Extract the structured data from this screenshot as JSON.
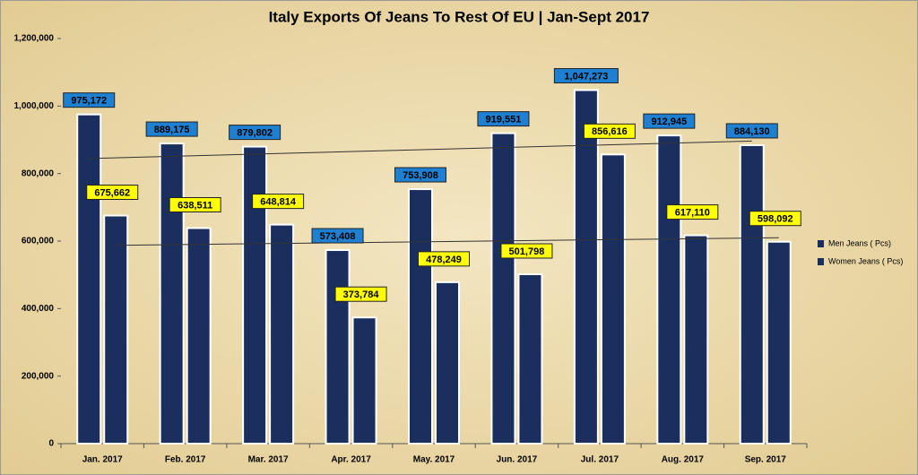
{
  "chart_data": {
    "type": "bar",
    "title": "Italy Exports Of Jeans To Rest Of EU | Jan-Sept 2017",
    "categories": [
      "Jan. 2017",
      "Feb. 2017",
      "Mar. 2017",
      "Apr. 2017",
      "May. 2017",
      "Jun. 2017",
      "Jul. 2017",
      "Aug. 2017",
      "Sep. 2017"
    ],
    "series": [
      {
        "name": "Men Jeans ( Pcs)",
        "color": "#1b2f5e",
        "label_color": "#1f7fd0",
        "values": [
          975172,
          889175,
          879802,
          573408,
          753908,
          919551,
          1047273,
          912945,
          884130
        ],
        "value_labels": [
          "975,172",
          "889,175",
          "879,802",
          "573,408",
          "753,908",
          "919,551",
          "1,047,273",
          "912,945",
          "884,130"
        ]
      },
      {
        "name": "Women Jeans ( Pcs)",
        "color": "#1b2f5e",
        "label_color": "#ffff00",
        "values": [
          675662,
          638511,
          648814,
          373784,
          478249,
          501798,
          856616,
          617110,
          598092
        ],
        "value_labels": [
          "675,662",
          "638,511",
          "648,814",
          "373,784",
          "478,249",
          "501,798",
          "856,616",
          "617,110",
          "598,092"
        ]
      }
    ],
    "ylim": [
      0,
      1200000
    ],
    "yticks": [
      0,
      {
        "value": 200000,
        "label": "200,000"
      },
      {
        "value": 400000,
        "label": "400,000"
      },
      {
        "value": 600000,
        "label": "600,000"
      },
      {
        "value": 800000,
        "label": "800,000"
      },
      {
        "value": 1000000,
        "label": "1,000,000"
      },
      {
        "value": 1200000,
        "label": "1,200,000"
      }
    ],
    "trendline": true,
    "legend": "right"
  }
}
